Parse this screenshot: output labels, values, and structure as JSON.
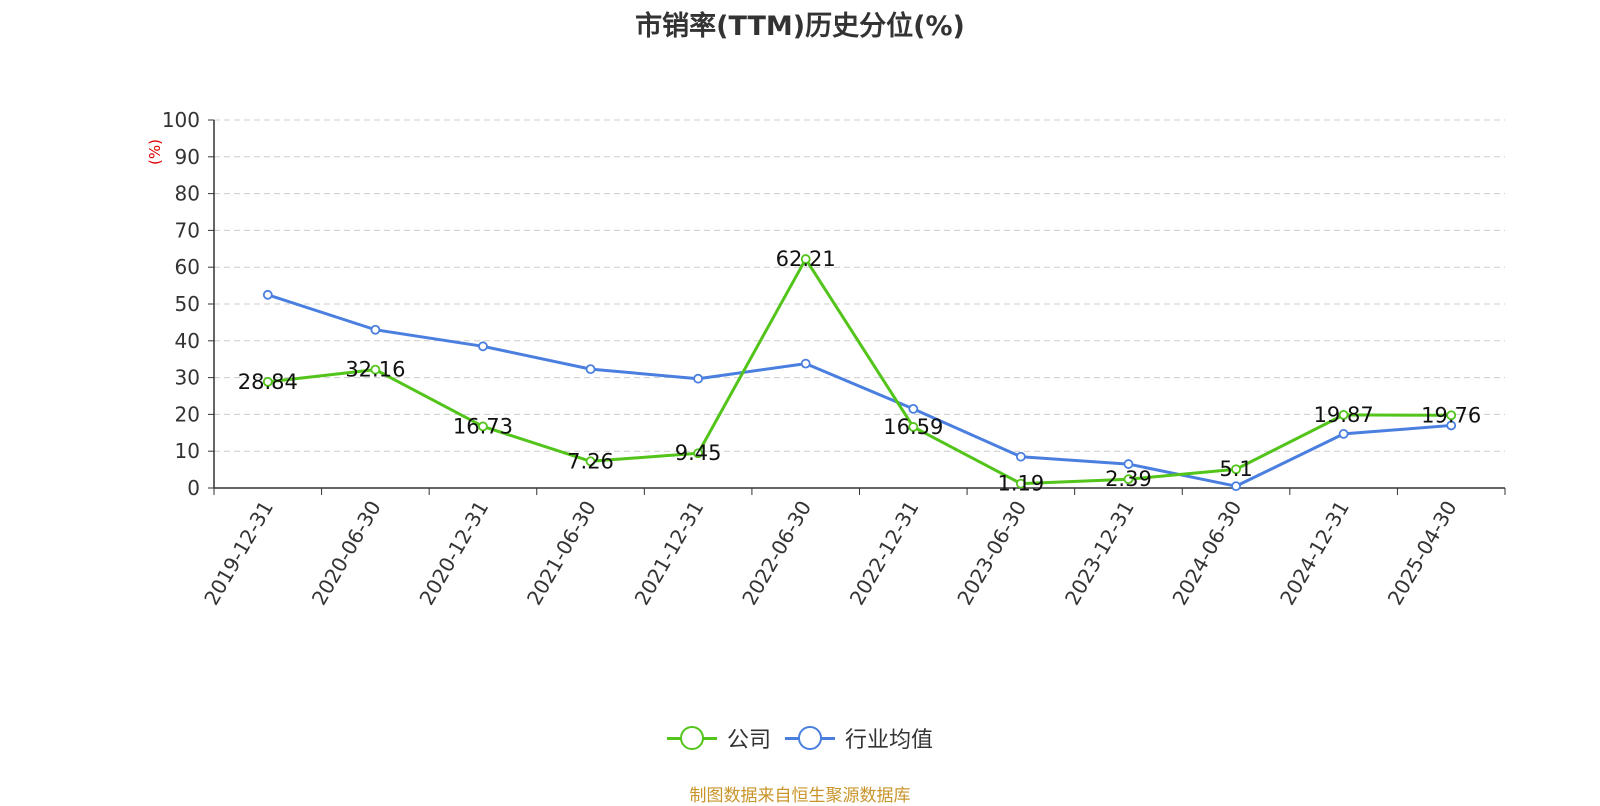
{
  "title": "市销率(TTM)历史分位(%)",
  "source": "制图数据来自恒生聚源数据库",
  "chart_data": {
    "type": "line",
    "title": "市销率(TTM)历史分位(%)",
    "ylabel": "(%)",
    "xlabel": "",
    "ylim": [
      0,
      100
    ],
    "yticks": [
      0,
      10,
      20,
      30,
      40,
      50,
      60,
      70,
      80,
      90,
      100
    ],
    "grid": true,
    "legend_position": "bottom",
    "categories": [
      "2019-12-31",
      "2020-06-30",
      "2020-12-31",
      "2021-06-30",
      "2021-12-31",
      "2022-06-30",
      "2022-12-31",
      "2023-06-30",
      "2023-12-31",
      "2024-06-30",
      "2024-12-31",
      "2025-04-30"
    ],
    "series": [
      {
        "name": "公司",
        "color": "#52c41a",
        "values": [
          28.84,
          32.16,
          16.73,
          7.26,
          9.45,
          62.21,
          16.59,
          1.19,
          2.39,
          5.1,
          19.87,
          19.76
        ],
        "labels": [
          "28.84",
          "32.16",
          "16.73",
          "7.26",
          "9.45",
          "62.21",
          "16.59",
          "1.19",
          "2.39",
          "5.1",
          "19.87",
          "19.76"
        ]
      },
      {
        "name": "行业均值",
        "color": "#4a7fe0",
        "values": [
          52.5,
          43.0,
          38.5,
          32.3,
          29.7,
          33.8,
          21.5,
          8.5,
          6.5,
          0.5,
          14.7,
          17.0
        ]
      }
    ]
  }
}
